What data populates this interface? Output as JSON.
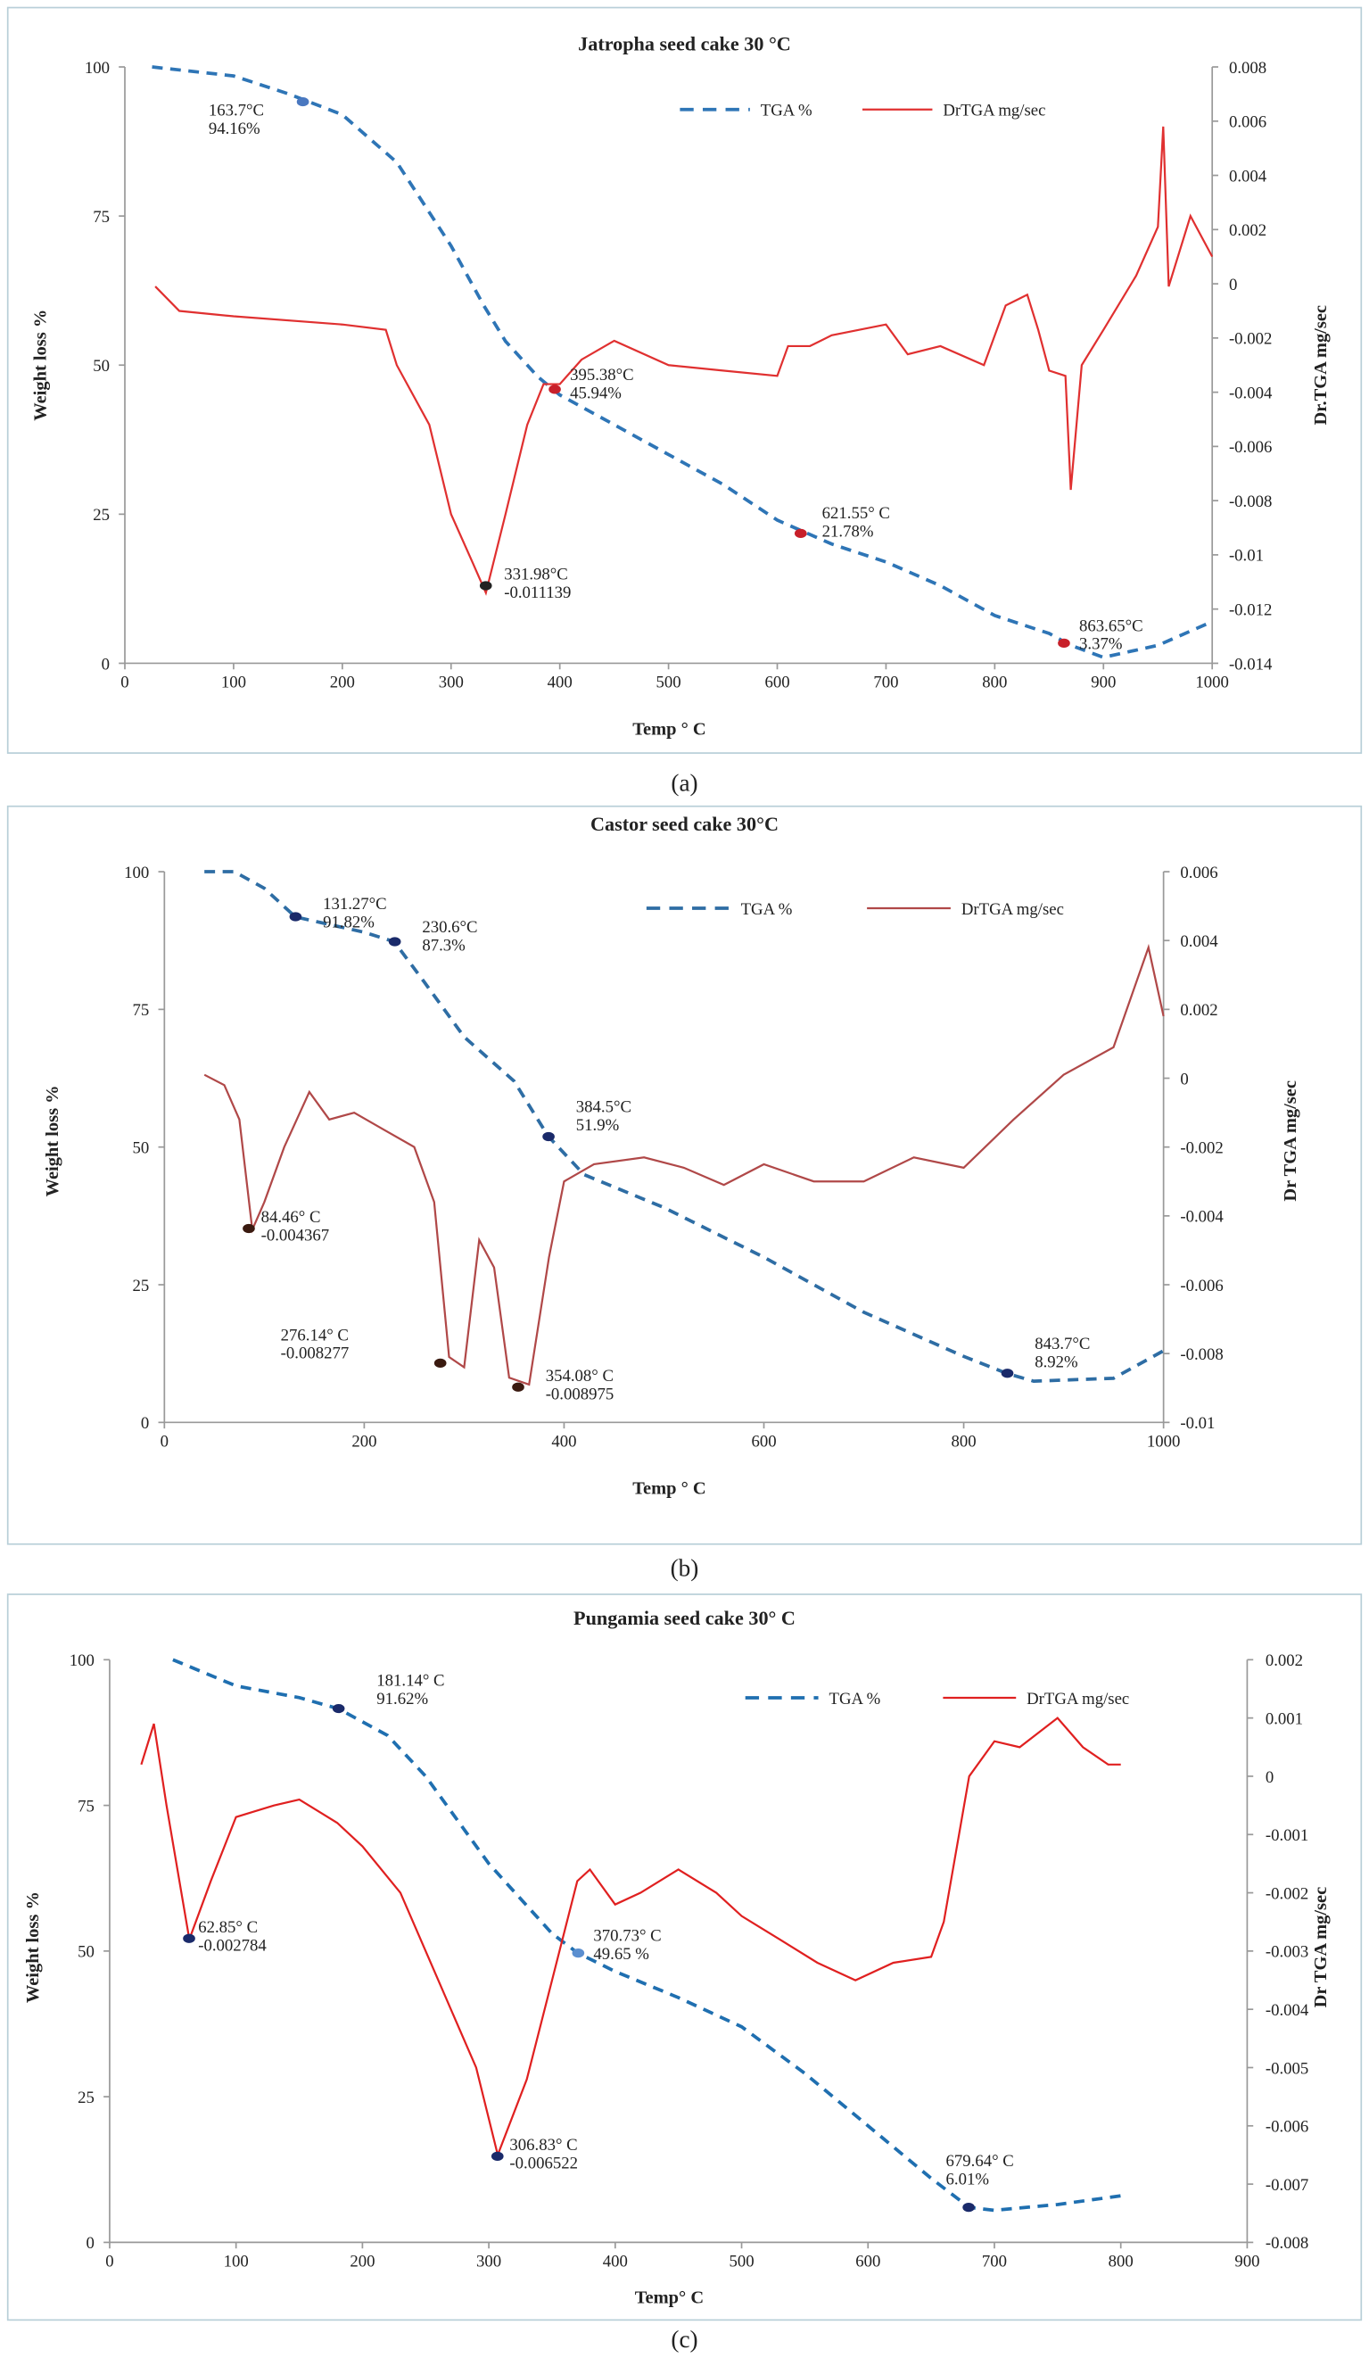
{
  "chart_data": [
    {
      "type": "line",
      "title": "Jatropha seed cake 30 °C",
      "caption": "(a)",
      "xlabel": "Temp ° C",
      "ylabel": "Weight loss %",
      "y2label": "Dr.TGA mg/sec",
      "xlim": [
        0,
        1000
      ],
      "xticks": [
        0,
        100,
        200,
        300,
        400,
        500,
        600,
        700,
        800,
        900,
        1000
      ],
      "ylim": [
        0,
        100
      ],
      "yticks": [
        0,
        25,
        50,
        75,
        100
      ],
      "y2lim": [
        -0.014,
        0.008
      ],
      "y2ticks": [
        -0.014,
        -0.012,
        -0.01,
        -0.008,
        -0.006,
        -0.004,
        -0.002,
        0,
        0.002,
        0.004,
        0.006,
        0.008
      ],
      "series": [
        {
          "name": "TGA %",
          "color": "#2e75b6",
          "style": "dashed",
          "axis": "y",
          "x": [
            25,
            100,
            150,
            200,
            250,
            300,
            330,
            350,
            380,
            400,
            450,
            500,
            550,
            600,
            650,
            700,
            750,
            800,
            850,
            870,
            900,
            950,
            1000
          ],
          "values": [
            100,
            98.5,
            95.5,
            92,
            84,
            70,
            60,
            54,
            48,
            45,
            40,
            35,
            30,
            24,
            20,
            17,
            13,
            8,
            5,
            3,
            1,
            3,
            7
          ]
        },
        {
          "name": "DrTGA mg/sec",
          "color": "#e03030",
          "style": "solid",
          "axis": "y2",
          "x": [
            28,
            50,
            100,
            200,
            240,
            250,
            280,
            300,
            320,
            332,
            350,
            370,
            385,
            400,
            420,
            450,
            500,
            550,
            600,
            610,
            630,
            650,
            700,
            720,
            750,
            790,
            810,
            830,
            840,
            850,
            865,
            870,
            880,
            900,
            930,
            950,
            955,
            960,
            980,
            1000
          ],
          "values": [
            -0.0001,
            -0.001,
            -0.0012,
            -0.0015,
            -0.0017,
            -0.003,
            -0.0052,
            -0.0085,
            -0.0103,
            -0.0114,
            -0.0085,
            -0.0052,
            -0.0037,
            -0.0037,
            -0.0028,
            -0.0021,
            -0.003,
            -0.0032,
            -0.0034,
            -0.0023,
            -0.0023,
            -0.0019,
            -0.0015,
            -0.0026,
            -0.0023,
            -0.003,
            -0.0008,
            -0.0004,
            -0.0017,
            -0.0032,
            -0.0034,
            -0.0076,
            -0.003,
            -0.0017,
            0.0003,
            0.0021,
            0.0058,
            -0.0001,
            0.0025,
            0.001
          ]
        }
      ],
      "annotations": [
        {
          "x": 163.7,
          "y": 94.16,
          "axis": "y",
          "color": "#4a78c0",
          "label": [
            "163.7°C",
            "94.16%"
          ]
        },
        {
          "x": 395.38,
          "y": 45.94,
          "axis": "y",
          "color": "#c8202a",
          "label": [
            "395.38°C",
            "45.94%"
          ]
        },
        {
          "x": 621.55,
          "y": 21.78,
          "axis": "y",
          "color": "#c8202a",
          "label": [
            "621.55° C",
            "21.78%"
          ]
        },
        {
          "x": 863.65,
          "y": 3.37,
          "axis": "y",
          "color": "#c8202a",
          "label": [
            "863.65°C",
            "3.37%"
          ]
        },
        {
          "x": 331.98,
          "y": -0.011139,
          "axis": "y2",
          "color": "#222222",
          "label": [
            "331.98°C",
            "-0.011139"
          ]
        }
      ]
    },
    {
      "type": "line",
      "title": "Castor  seed cake 30°C",
      "caption": "(b)",
      "xlabel": "Temp ° C",
      "ylabel": "Weight loss %",
      "y2label": "Dr TGA mg/sec",
      "xlim": [
        0,
        1000
      ],
      "xticks": [
        0,
        200,
        400,
        600,
        800,
        1000
      ],
      "ylim": [
        0,
        100
      ],
      "yticks": [
        0,
        25,
        50,
        75,
        100
      ],
      "y2lim": [
        -0.01,
        0.006
      ],
      "y2ticks": [
        -0.01,
        -0.008,
        -0.006,
        -0.004,
        -0.002,
        0,
        0.002,
        0.004,
        0.006
      ],
      "series": [
        {
          "name": "TGA %",
          "color": "#2e6da4",
          "style": "dashed",
          "axis": "y",
          "x": [
            40,
            70,
            100,
            131,
            200,
            230,
            260,
            300,
            350,
            384,
            420,
            500,
            600,
            700,
            800,
            843,
            870,
            950,
            1000
          ],
          "values": [
            100,
            100,
            97,
            91.8,
            89,
            87.3,
            80,
            70,
            62,
            52,
            45,
            39,
            30,
            20,
            12,
            8.9,
            7.5,
            8,
            13
          ]
        },
        {
          "name": "DrTGA mg/sec",
          "color": "#b04848",
          "style": "solid",
          "axis": "y2",
          "x": [
            40,
            60,
            75,
            88,
            100,
            120,
            145,
            165,
            190,
            220,
            250,
            270,
            285,
            300,
            315,
            330,
            345,
            365,
            385,
            400,
            430,
            480,
            520,
            560,
            600,
            650,
            700,
            750,
            800,
            850,
            900,
            950,
            985,
            1000
          ],
          "values": [
            0.0001,
            -0.0002,
            -0.0012,
            -0.0044,
            -0.0036,
            -0.002,
            -0.0004,
            -0.0012,
            -0.001,
            -0.0015,
            -0.002,
            -0.0036,
            -0.0081,
            -0.0084,
            -0.0047,
            -0.0055,
            -0.0087,
            -0.0089,
            -0.0052,
            -0.003,
            -0.0025,
            -0.0023,
            -0.0026,
            -0.0031,
            -0.0025,
            -0.003,
            -0.003,
            -0.0023,
            -0.0026,
            -0.0012,
            0.0001,
            0.0009,
            0.0038,
            0.0018
          ]
        }
      ],
      "annotations": [
        {
          "x": 131.27,
          "y": 91.82,
          "axis": "y",
          "color": "#1a2a6a",
          "label": [
            "131.27°C",
            "91.82%"
          ]
        },
        {
          "x": 230.6,
          "y": 87.3,
          "axis": "y",
          "color": "#1a2a6a",
          "label": [
            "230.6°C",
            "87.3%"
          ]
        },
        {
          "x": 384.5,
          "y": 51.9,
          "axis": "y",
          "color": "#1a2a6a",
          "label": [
            "384.5°C",
            "51.9%"
          ]
        },
        {
          "x": 843.7,
          "y": 8.92,
          "axis": "y",
          "color": "#1a2a6a",
          "label": [
            "843.7°C",
            "8.92%"
          ]
        },
        {
          "x": 84.46,
          "y": -0.004367,
          "axis": "y2",
          "color": "#3a1a10",
          "label": [
            "84.46° C",
            "-0.004367"
          ]
        },
        {
          "x": 276.14,
          "y": -0.008277,
          "axis": "y2",
          "color": "#3a1a10",
          "label": [
            "276.14° C",
            "-0.008277"
          ]
        },
        {
          "x": 354.08,
          "y": -0.008975,
          "axis": "y2",
          "color": "#3a1a10",
          "label": [
            "354.08° C",
            "-0.008975"
          ]
        }
      ]
    },
    {
      "type": "line",
      "title": "Pungamia seed cake 30° C",
      "caption": "(c)",
      "xlabel": "Temp° C",
      "ylabel": "Weight loss %",
      "y2label": "Dr TGA mg/sec",
      "xlim": [
        0,
        900
      ],
      "xticks": [
        0,
        100,
        200,
        300,
        400,
        500,
        600,
        700,
        800,
        900
      ],
      "ylim": [
        0,
        100
      ],
      "yticks": [
        0,
        25,
        50,
        75,
        100
      ],
      "y2lim": [
        -0.008,
        0.002
      ],
      "y2ticks": [
        -0.008,
        -0.007,
        -0.006,
        -0.005,
        -0.004,
        -0.003,
        -0.002,
        -0.001,
        0,
        0.001,
        0.002
      ],
      "series": [
        {
          "name": "TGA %",
          "color": "#1f6fb0",
          "style": "dashed",
          "axis": "y",
          "x": [
            50,
            100,
            150,
            181,
            220,
            250,
            300,
            350,
            370,
            400,
            450,
            500,
            550,
            600,
            650,
            680,
            700,
            750,
            800
          ],
          "values": [
            100,
            95.5,
            93.5,
            91.6,
            87,
            80,
            65,
            53,
            49.7,
            46.5,
            42,
            37,
            29,
            20,
            11,
            6,
            5.5,
            6.5,
            8
          ]
        },
        {
          "name": "DrTGA mg/sec",
          "color": "#e02020",
          "style": "solid",
          "axis": "y2",
          "x": [
            25,
            35,
            45,
            63,
            80,
            100,
            130,
            150,
            180,
            200,
            230,
            260,
            290,
            307,
            330,
            350,
            370,
            380,
            400,
            420,
            450,
            480,
            500,
            530,
            560,
            590,
            620,
            650,
            660,
            680,
            700,
            720,
            750,
            770,
            790,
            800
          ],
          "values": [
            0.0002,
            0.0009,
            -0.0005,
            -0.0028,
            -0.0018,
            -0.0007,
            -0.0005,
            -0.0004,
            -0.0008,
            -0.0012,
            -0.002,
            -0.0035,
            -0.005,
            -0.0065,
            -0.0052,
            -0.0035,
            -0.0018,
            -0.0016,
            -0.0022,
            -0.002,
            -0.0016,
            -0.002,
            -0.0024,
            -0.0028,
            -0.0032,
            -0.0035,
            -0.0032,
            -0.0031,
            -0.0025,
            0,
            0.0006,
            0.0005,
            0.001,
            0.0005,
            0.0002,
            0.0002
          ]
        }
      ],
      "annotations": [
        {
          "x": 181.14,
          "y": 91.62,
          "axis": "y",
          "color": "#1a2a6a",
          "label": [
            "181.14° C",
            "91.62%"
          ]
        },
        {
          "x": 370.73,
          "y": 49.65,
          "axis": "y",
          "color": "#5b8fd0",
          "label": [
            "370.73° C",
            "49.65 %"
          ]
        },
        {
          "x": 679.64,
          "y": 6.01,
          "axis": "y",
          "color": "#1a2a6a",
          "label": [
            "679.64° C",
            "6.01%"
          ]
        },
        {
          "x": 62.85,
          "y": -0.002784,
          "axis": "y2",
          "color": "#1a2a6a",
          "label": [
            "62.85° C",
            "-0.002784"
          ]
        },
        {
          "x": 306.83,
          "y": -0.006522,
          "axis": "y2",
          "color": "#1a2a6a",
          "label": [
            "306.83° C",
            "-0.006522"
          ]
        }
      ]
    }
  ]
}
